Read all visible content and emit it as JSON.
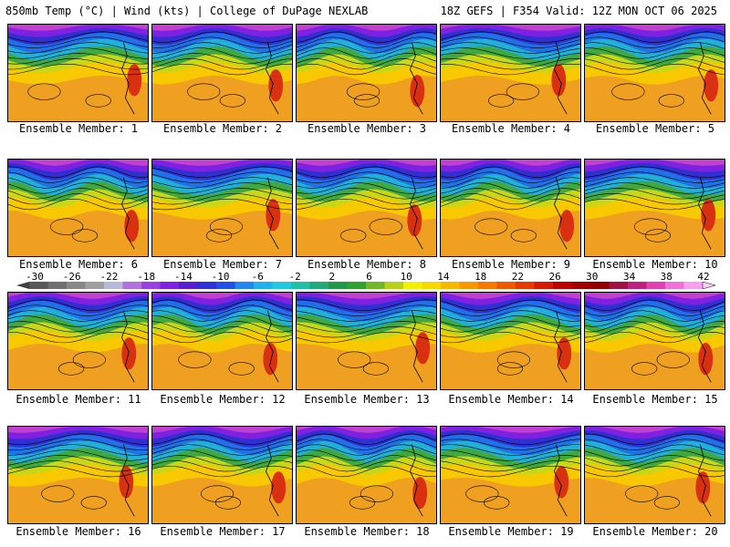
{
  "header": {
    "left": "850mb Temp (°C) | Wind (kts) | College of DuPage NEXLAB",
    "right": "18Z GEFS | F354 Valid: 12Z MON OCT 06 2025"
  },
  "members": [
    "Ensemble Member: 1",
    "Ensemble Member: 2",
    "Ensemble Member: 3",
    "Ensemble Member: 4",
    "Ensemble Member: 5",
    "Ensemble Member: 6",
    "Ensemble Member: 7",
    "Ensemble Member: 8",
    "Ensemble Member: 9",
    "Ensemble Member: 10",
    "Ensemble Member: 11",
    "Ensemble Member: 12",
    "Ensemble Member: 13",
    "Ensemble Member: 14",
    "Ensemble Member: 15",
    "Ensemble Member: 16",
    "Ensemble Member: 17",
    "Ensemble Member: 18",
    "Ensemble Member: 19",
    "Ensemble Member: 20"
  ],
  "colorbar": {
    "ticks": [
      "-30",
      "-26",
      "-22",
      "-18",
      "-14",
      "-10",
      "-6",
      "-2",
      "2",
      "6",
      "10",
      "14",
      "18",
      "22",
      "26",
      "30",
      "34",
      "38",
      "42"
    ],
    "colors": [
      "#585858",
      "#707070",
      "#888888",
      "#a0a0a0",
      "#b8b8d8",
      "#b070e0",
      "#9a40e0",
      "#8020e0",
      "#5820d0",
      "#3030d8",
      "#2050e8",
      "#2088f0",
      "#20b0f0",
      "#20c8e0",
      "#20c0a8",
      "#20a878",
      "#209848",
      "#30a030",
      "#70b828",
      "#b8d018",
      "#f0f000",
      "#f8d800",
      "#f8b800",
      "#f89800",
      "#f87800",
      "#f05800",
      "#e83800",
      "#d81800",
      "#c00000",
      "#a00000",
      "#900000",
      "#a01040",
      "#c02080",
      "#e040b0",
      "#f070d8",
      "#f8a0f0"
    ]
  }
}
